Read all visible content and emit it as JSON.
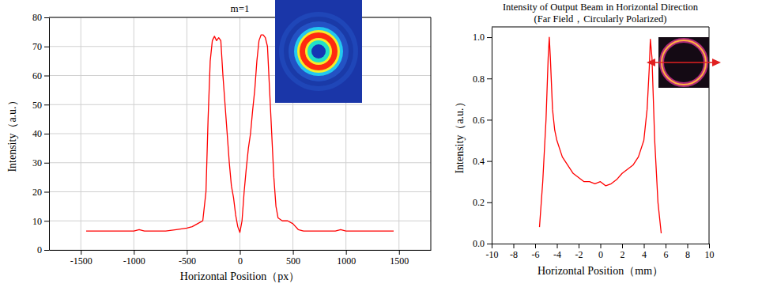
{
  "chart_data": [
    {
      "type": "line",
      "title": "m=1",
      "x_label": "Horizontal Position（px）",
      "y_label": "Intensity（a.u.）",
      "x": [
        -1450,
        -1000,
        -950,
        -900,
        -700,
        -600,
        -500,
        -450,
        -400,
        -350,
        -320,
        -300,
        -280,
        -260,
        -240,
        -220,
        -200,
        -180,
        -160,
        -140,
        -120,
        -100,
        -80,
        -60,
        -40,
        -20,
        0,
        20,
        40,
        60,
        80,
        100,
        120,
        140,
        160,
        180,
        200,
        220,
        240,
        260,
        280,
        300,
        320,
        340,
        360,
        400,
        450,
        500,
        550,
        600,
        900,
        950,
        1000,
        1450
      ],
      "values": [
        6.5,
        6.5,
        7,
        6.5,
        6.5,
        7,
        7.5,
        8,
        9,
        10,
        20,
        45,
        65,
        72,
        73.5,
        72,
        73,
        72,
        60,
        50,
        40,
        30,
        22,
        18,
        12,
        8,
        6,
        10,
        20,
        28,
        35,
        40,
        48,
        55,
        65,
        72,
        74,
        74,
        73,
        70,
        55,
        40,
        25,
        15,
        11,
        10,
        10,
        9,
        7,
        6.5,
        6.5,
        7,
        6.5,
        6.5
      ],
      "color": "#ff0000",
      "xlim": [
        -1800,
        1800
      ],
      "xticks": [
        -1500,
        -1000,
        -500,
        0,
        500,
        1000,
        1500
      ],
      "ylim": [
        0,
        80
      ],
      "yticks": [
        0,
        10,
        20,
        30,
        40,
        50,
        60,
        70,
        80
      ],
      "grid": true
    },
    {
      "type": "line",
      "title": "Intensity of Output Beam in Horizontal Direction",
      "subtitle": "(Far Field，Circularly Polarized)",
      "x_label": "Horizontal Position（mm）",
      "y_label": "Intensity（a.u.）",
      "x": [
        -5.6,
        -5.3,
        -5.0,
        -4.8,
        -4.7,
        -4.6,
        -4.4,
        -4.2,
        -4.0,
        -3.5,
        -3.0,
        -2.5,
        -2.0,
        -1.5,
        -1.0,
        -0.5,
        0,
        0.5,
        1.0,
        1.5,
        2.0,
        2.5,
        3.0,
        3.5,
        4.0,
        4.3,
        4.5,
        4.6,
        4.75,
        5.0,
        5.3,
        5.6
      ],
      "values": [
        0.08,
        0.3,
        0.6,
        0.9,
        1.0,
        0.9,
        0.65,
        0.55,
        0.5,
        0.42,
        0.38,
        0.34,
        0.32,
        0.3,
        0.3,
        0.29,
        0.3,
        0.28,
        0.29,
        0.31,
        0.34,
        0.36,
        0.38,
        0.42,
        0.5,
        0.65,
        0.85,
        0.99,
        0.9,
        0.5,
        0.2,
        0.05
      ],
      "color": "#ff0000",
      "xlim": [
        -10,
        10
      ],
      "xticks": [
        -10,
        -8,
        -6,
        -4,
        -2,
        0,
        2,
        4,
        6,
        8,
        10
      ],
      "ylim": [
        0,
        1.05
      ],
      "yticks": [
        {
          "value": 0,
          "label": "0.0"
        },
        0.2,
        0.4,
        0.6,
        0.8,
        {
          "value": 1,
          "label": "1.0"
        }
      ],
      "grid": false
    }
  ]
}
